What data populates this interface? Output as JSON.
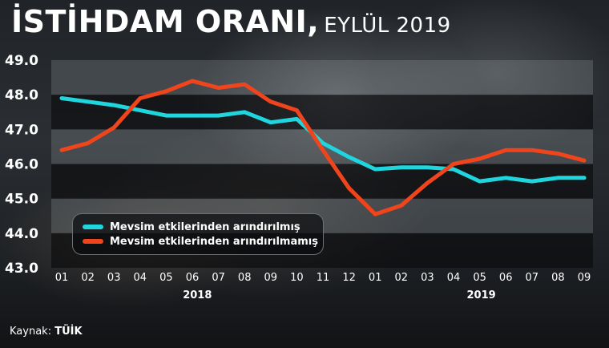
{
  "title": {
    "main": "İSTİHDAM ORANI,",
    "sub": "EYLÜL 2019"
  },
  "source": {
    "label": "Kaynak:",
    "value": "TÜİK"
  },
  "colors": {
    "seasonal": "#1fd6df",
    "unadjusted": "#f0451c"
  },
  "chart_data": {
    "type": "line",
    "x": [
      "01",
      "02",
      "03",
      "04",
      "05",
      "06",
      "07",
      "08",
      "09",
      "10",
      "11",
      "12",
      "01",
      "02",
      "03",
      "04",
      "05",
      "06",
      "07",
      "08",
      "09"
    ],
    "year_labels": [
      {
        "label": "2018",
        "start": 0,
        "end": 11
      },
      {
        "label": "2019",
        "start": 12,
        "end": 20
      }
    ],
    "yticks": [
      "43.0",
      "44.0",
      "45.0",
      "46.0",
      "47.0",
      "48.0",
      "49.0"
    ],
    "ylim": [
      43.0,
      49.0
    ],
    "series": [
      {
        "name": "Mevsim etkilerinden arındırılmış",
        "color": "#1fd6df",
        "values": [
          47.9,
          47.8,
          47.7,
          47.55,
          47.4,
          47.4,
          47.4,
          47.5,
          47.2,
          47.3,
          46.6,
          46.2,
          45.85,
          45.9,
          45.9,
          45.85,
          45.5,
          45.6,
          45.5,
          45.6,
          45.6
        ]
      },
      {
        "name": "Mevsim etkilerinden arındırılmamış",
        "color": "#f0451c",
        "values": [
          46.4,
          46.6,
          47.05,
          47.9,
          48.1,
          48.4,
          48.2,
          48.3,
          47.8,
          47.55,
          46.4,
          45.3,
          44.55,
          44.8,
          45.45,
          46.0,
          46.15,
          46.4,
          46.4,
          46.3,
          46.1
        ]
      }
    ],
    "legend_position": "bottom-left",
    "grid": true
  }
}
